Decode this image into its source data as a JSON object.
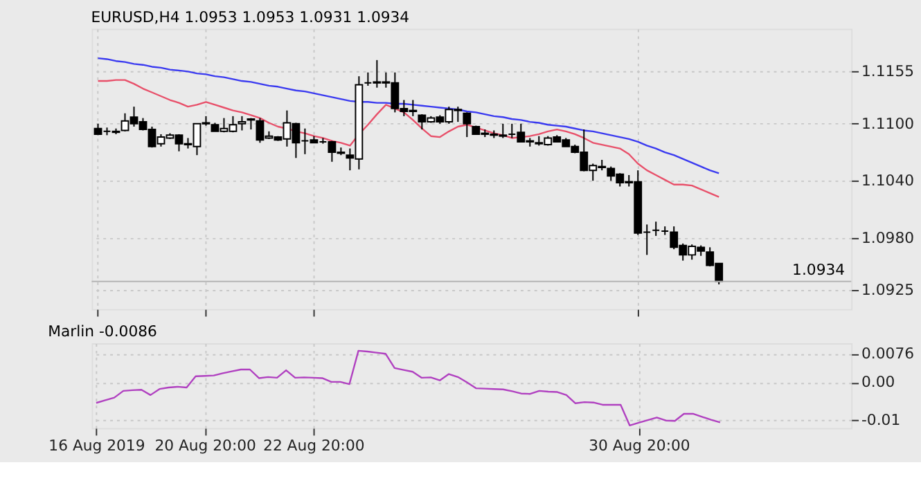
{
  "chart_data": [
    {
      "type": "candlestick",
      "title": "EURUSD,H4  1.0953 1.0953 1.0931 1.0934",
      "categories": [
        null,
        null,
        null,
        null,
        null,
        null,
        null,
        null,
        null,
        null,
        null,
        null,
        null,
        null,
        null,
        null,
        null,
        null,
        null,
        null,
        null,
        null,
        null,
        null,
        null,
        null,
        null,
        null,
        null,
        null,
        null,
        null,
        null,
        null,
        null,
        null,
        null,
        null,
        null,
        null,
        null,
        null,
        null,
        null,
        null,
        null,
        null,
        null,
        null,
        null,
        null,
        null,
        null,
        null,
        null,
        null,
        null,
        null,
        null,
        null,
        null,
        null,
        null,
        null,
        null,
        null,
        null,
        null,
        null,
        null,
        null,
        null,
        null,
        null,
        null,
        null,
        null,
        null,
        null,
        null,
        null,
        null,
        null,
        null
      ],
      "ohlc": [
        [
          1.1095,
          1.11,
          1.1088,
          1.1089
        ],
        [
          1.1092,
          1.1096,
          1.1088,
          1.1092
        ],
        [
          1.1092,
          1.1095,
          1.1089,
          1.1091
        ],
        [
          1.1093,
          1.1111,
          1.1092,
          1.1103
        ],
        [
          1.1107,
          1.1118,
          1.1097,
          1.11
        ],
        [
          1.1102,
          1.1106,
          1.1093,
          1.1094
        ],
        [
          1.1094,
          1.1097,
          1.1075,
          1.1076
        ],
        [
          1.1079,
          1.1089,
          1.1076,
          1.1086
        ],
        [
          1.1085,
          1.109,
          1.1084,
          1.1088
        ],
        [
          1.1088,
          1.1089,
          1.1071,
          1.1079
        ],
        [
          1.1079,
          1.1085,
          1.1074,
          1.1078
        ],
        [
          1.1076,
          1.11,
          1.1067,
          1.11
        ],
        [
          1.11,
          1.1108,
          1.1098,
          1.1101
        ],
        [
          1.1099,
          1.1101,
          1.1092,
          1.1092
        ],
        [
          1.1092,
          1.1106,
          1.1091,
          1.1095
        ],
        [
          1.1092,
          1.1108,
          1.1091,
          1.1099
        ],
        [
          1.11,
          1.1108,
          1.1093,
          1.1102
        ],
        [
          1.1104,
          1.1106,
          1.1094,
          1.1105
        ],
        [
          1.1103,
          1.1106,
          1.108,
          1.1083
        ],
        [
          1.1085,
          1.1092,
          1.1084,
          1.1087
        ],
        [
          1.1086,
          1.1087,
          1.1082,
          1.1083
        ],
        [
          1.1084,
          1.1114,
          1.1076,
          1.1101
        ],
        [
          1.11,
          1.1101,
          1.1064,
          1.108
        ],
        [
          1.1082,
          1.1095,
          1.1068,
          1.1082
        ],
        [
          1.1083,
          1.1087,
          1.108,
          1.108
        ],
        [
          1.1081,
          1.1085,
          1.1079,
          1.1081
        ],
        [
          1.1081,
          1.1082,
          1.106,
          1.107
        ],
        [
          1.107,
          1.1075,
          1.1067,
          1.1069
        ],
        [
          1.1067,
          1.1074,
          1.1051,
          1.1064
        ],
        [
          1.1063,
          1.115,
          1.1052,
          1.1141
        ],
        [
          1.1143,
          1.1154,
          1.114,
          1.1143
        ],
        [
          1.1144,
          1.1167,
          1.1138,
          1.1143
        ],
        [
          1.1143,
          1.1154,
          1.1138,
          1.1144
        ],
        [
          1.1143,
          1.1154,
          1.1112,
          1.1116
        ],
        [
          1.1116,
          1.1125,
          1.1108,
          1.1113
        ],
        [
          1.1113,
          1.1125,
          1.1108,
          1.1114
        ],
        [
          1.1109,
          1.111,
          1.1094,
          1.1102
        ],
        [
          1.1102,
          1.1108,
          1.1101,
          1.1106
        ],
        [
          1.1107,
          1.1109,
          1.11,
          1.1102
        ],
        [
          1.1102,
          1.1118,
          1.11,
          1.1115
        ],
        [
          1.1115,
          1.1118,
          1.1102,
          1.1114
        ],
        [
          1.1111,
          1.1112,
          1.1086,
          1.11
        ],
        [
          1.1097,
          1.1098,
          1.1089,
          1.1089
        ],
        [
          1.109,
          1.1094,
          1.1086,
          1.1089
        ],
        [
          1.1089,
          1.1093,
          1.1085,
          1.1088
        ],
        [
          1.1088,
          1.11,
          1.1085,
          1.1087
        ],
        [
          1.1089,
          1.11,
          1.1085,
          1.1089
        ],
        [
          1.1091,
          1.11,
          1.1081,
          1.1081
        ],
        [
          1.1082,
          1.1085,
          1.1076,
          1.1081
        ],
        [
          1.108,
          1.1087,
          1.1077,
          1.1079
        ],
        [
          1.1078,
          1.1087,
          1.1077,
          1.1085
        ],
        [
          1.1086,
          1.1088,
          1.1081,
          1.1081
        ],
        [
          1.1083,
          1.1085,
          1.1076,
          1.1076
        ],
        [
          1.1076,
          1.1078,
          1.1069,
          1.107
        ],
        [
          1.107,
          1.1094,
          1.105,
          1.1051
        ],
        [
          1.1051,
          1.1058,
          1.104,
          1.1056
        ],
        [
          1.1055,
          1.1062,
          1.1051,
          1.1054
        ],
        [
          1.1053,
          1.1055,
          1.104,
          1.1045
        ],
        [
          1.1047,
          1.1048,
          1.1034,
          1.1038
        ],
        [
          1.1039,
          1.1046,
          1.1034,
          1.1038
        ],
        [
          1.1039,
          1.1051,
          1.0983,
          1.0985
        ],
        [
          1.0986,
          1.0994,
          1.0962,
          1.0986
        ],
        [
          1.0988,
          1.0997,
          1.0982,
          1.0988
        ],
        [
          1.0987,
          1.0992,
          1.0983,
          1.0987
        ],
        [
          1.0986,
          1.0992,
          1.0968,
          1.097
        ],
        [
          1.0972,
          1.0974,
          1.0956,
          1.0962
        ],
        [
          1.0962,
          1.0973,
          1.0957,
          1.0971
        ],
        [
          1.097,
          1.0972,
          1.0961,
          1.0966
        ],
        [
          1.0965,
          1.097,
          1.095,
          1.0951
        ],
        [
          1.0953,
          1.0953,
          1.0931,
          1.0934
        ],
        null,
        null,
        null,
        null,
        null,
        null,
        null,
        null,
        null,
        null,
        null,
        null,
        null,
        null
      ],
      "series": [
        {
          "type": "line",
          "color": "#e8506a",
          "values": [
            1.1145,
            1.1145,
            1.1146,
            1.1146,
            1.1142,
            1.1137,
            1.1133,
            1.1129,
            1.1125,
            1.1122,
            1.1118,
            1.112,
            1.1123,
            1.112,
            1.1117,
            1.1114,
            1.1112,
            1.1109,
            1.1106,
            1.1101,
            1.1097,
            1.1095,
            1.1092,
            1.109,
            1.1087,
            1.1085,
            1.1082,
            1.108,
            1.1077,
            1.1089,
            1.1099,
            1.111,
            1.112,
            1.1116,
            1.1112,
            1.1104,
            1.1095,
            1.1087,
            1.1086,
            1.1092,
            1.1097,
            1.1099,
            1.1096,
            1.1093,
            1.109,
            1.1088,
            1.1085,
            1.1086,
            1.1087,
            1.1089,
            1.1092,
            1.1094,
            1.1092,
            1.1089,
            1.1085,
            1.108,
            1.1078,
            1.1076,
            1.1074,
            1.1068,
            1.1058,
            1.1051,
            1.1046,
            1.1041,
            1.1036,
            1.1036,
            1.1035,
            1.1031,
            1.1027,
            1.1023,
            null,
            null,
            null,
            null,
            null,
            null,
            null,
            null,
            null,
            null,
            null,
            null,
            null,
            null
          ]
        },
        {
          "type": "line",
          "color": "#3a3af0",
          "values": [
            1.1169,
            1.1168,
            1.1166,
            1.1165,
            1.1163,
            1.1162,
            1.116,
            1.1159,
            1.1157,
            1.1156,
            1.1155,
            1.1153,
            1.1152,
            1.115,
            1.1149,
            1.1147,
            1.1145,
            1.1144,
            1.1142,
            1.114,
            1.1139,
            1.1137,
            1.1135,
            1.1134,
            1.1132,
            1.113,
            1.1128,
            1.1126,
            1.1124,
            1.1123,
            1.1123,
            1.1122,
            1.1122,
            1.1121,
            1.1121,
            1.112,
            1.1119,
            1.1118,
            1.1117,
            1.1116,
            1.1115,
            1.1113,
            1.1112,
            1.111,
            1.1108,
            1.1107,
            1.1105,
            1.1104,
            1.1102,
            1.1101,
            1.1099,
            1.1098,
            1.1097,
            1.1095,
            1.1093,
            1.1092,
            1.109,
            1.1088,
            1.1086,
            1.1084,
            1.1081,
            1.1077,
            1.1074,
            1.107,
            1.1067,
            1.1063,
            1.1059,
            1.1055,
            1.1051,
            1.1048,
            null,
            null,
            null,
            null,
            null,
            null,
            null,
            null,
            null,
            null,
            null,
            null,
            null,
            null
          ]
        }
      ],
      "ylim": [
        1.0905,
        1.12
      ],
      "yticks": [
        1.0925,
        {
          "value": 1.098,
          "label": "1.0980"
        },
        {
          "value": 1.104,
          "label": "1.1040"
        },
        {
          "value": 1.11,
          "label": "1.1100"
        },
        1.1155
      ],
      "ref_lines": [
        {
          "axis": "y",
          "value": 1.0934,
          "label": "1.0934",
          "color": "#b4b4b4"
        }
      ],
      "grid": true,
      "tick_labels": "y"
    },
    {
      "type": "line",
      "title": "Marlin -0.0086",
      "categories": [
        "16 Aug 2019",
        null,
        null,
        null,
        null,
        null,
        null,
        null,
        null,
        null,
        null,
        null,
        "20 Aug 20:00",
        null,
        null,
        null,
        null,
        null,
        null,
        null,
        null,
        null,
        null,
        null,
        "22 Aug 20:00",
        null,
        null,
        null,
        null,
        null,
        null,
        null,
        null,
        null,
        null,
        null,
        null,
        null,
        null,
        null,
        null,
        null,
        null,
        null,
        null,
        null,
        null,
        null,
        null,
        null,
        null,
        null,
        null,
        null,
        null,
        null,
        null,
        null,
        null,
        null,
        "30 Aug 20:00",
        null,
        null,
        null,
        null,
        null,
        null,
        null,
        null,
        null,
        null,
        null,
        null,
        null,
        null,
        null,
        null,
        null,
        null,
        null,
        null,
        null,
        null,
        null
      ],
      "series": [
        {
          "color": "#b040c0",
          "values": [
            -0.0055,
            -0.0048,
            -0.0041,
            -0.0023,
            -0.0021,
            -0.002,
            -0.0034,
            -0.0018,
            -0.0014,
            -0.0012,
            -0.0014,
            0.0016,
            0.0017,
            0.0018,
            0.0024,
            0.0029,
            0.0034,
            0.0034,
            0.0011,
            0.0014,
            0.0012,
            0.0032,
            0.0012,
            0.0013,
            0.0012,
            0.0011,
            0.0001,
            0.0001,
            -0.0005,
            0.0084,
            0.0082,
            0.0079,
            0.0076,
            0.0038,
            0.0033,
            0.0028,
            0.0012,
            0.0013,
            0.0005,
            0.0022,
            0.0014,
            0.0,
            -0.0016,
            -0.0017,
            -0.0018,
            -0.0019,
            -0.0024,
            -0.003,
            -0.0031,
            -0.0023,
            -0.0025,
            -0.0026,
            -0.0034,
            -0.0056,
            -0.0053,
            -0.0054,
            -0.006,
            -0.006,
            -0.006,
            -0.0115,
            -0.0108,
            -0.0101,
            -0.0094,
            -0.0102,
            -0.0103,
            -0.0084,
            -0.0084,
            -0.0092,
            -0.01,
            -0.0107,
            null,
            null,
            null,
            null,
            null,
            null,
            null,
            null,
            null,
            null,
            null,
            null,
            null,
            null
          ]
        }
      ],
      "ylim": [
        -0.0122,
        0.0104
      ],
      "yticks": [
        {
          "value": -0.01,
          "label": "-0.01"
        },
        {
          "value": 0,
          "label": "0.00"
        },
        0.0076
      ],
      "grid": true
    }
  ]
}
